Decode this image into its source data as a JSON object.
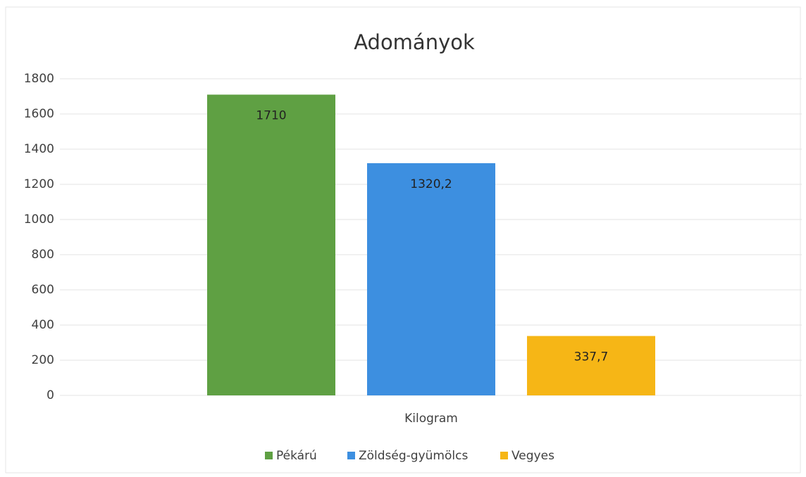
{
  "chart_data": {
    "type": "bar",
    "title": "Adományok",
    "categories": [
      "Kilogram"
    ],
    "series": [
      {
        "name": "Pékárú",
        "color": "#5fa043",
        "values": [
          1710
        ]
      },
      {
        "name": "Zöldség-gyümölcs",
        "color": "#3d8fe0",
        "values": [
          1320.2
        ],
        "value_labels": [
          "1320,2"
        ]
      },
      {
        "name": "Vegyes",
        "color": "#f6b616",
        "values": [
          337.7
        ],
        "value_labels": [
          "337,7"
        ]
      }
    ],
    "ylim": [
      0,
      1800
    ],
    "yticks": [
      0,
      200,
      400,
      600,
      800,
      1000,
      1200,
      1400,
      1600,
      1800
    ],
    "grid": true,
    "legend": "bottom"
  }
}
